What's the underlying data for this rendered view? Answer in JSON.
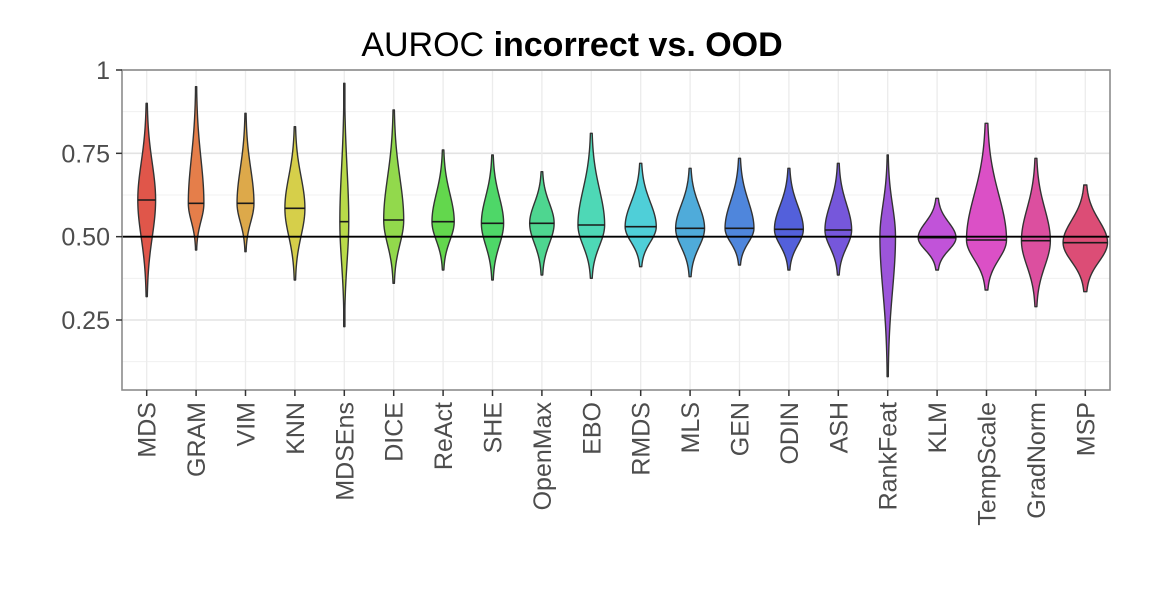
{
  "chart_data": {
    "type": "violin",
    "title": "AUROC ",
    "title_bold": "incorrect vs. OOD",
    "xlabel": "",
    "ylabel": "",
    "ylim": [
      0.04,
      1.0
    ],
    "yticks": [
      0.25,
      0.5,
      0.75,
      1.0
    ],
    "ytick_labels": [
      "0.25",
      "0.50",
      "0.75",
      "1"
    ],
    "reference_line": 0.5,
    "grid": true,
    "categories": [
      "MDS",
      "GRAM",
      "VIM",
      "KNN",
      "MDSEns",
      "DICE",
      "ReAct",
      "SHE",
      "OpenMax",
      "EBO",
      "RMDS",
      "MLS",
      "GEN",
      "ODIN",
      "ASH",
      "RankFeat",
      "KLM",
      "TempScale",
      "GradNorm",
      "MSP"
    ],
    "colors": [
      "#E0564A",
      "#E57E4A",
      "#DDA94A",
      "#D6CF4A",
      "#B9DA49",
      "#92D94C",
      "#63D74D",
      "#4ED768",
      "#4ED690",
      "#4ED8B6",
      "#4FCFD8",
      "#4FABDA",
      "#4F86DC",
      "#5360DB",
      "#7657DB",
      "#9C55DA",
      "#C153D9",
      "#DB50C6",
      "#DC4F9F",
      "#DC4D76"
    ],
    "medians": [
      0.61,
      0.6,
      0.6,
      0.585,
      0.545,
      0.55,
      0.545,
      0.54,
      0.54,
      0.535,
      0.53,
      0.525,
      0.525,
      0.522,
      0.52,
      0.5,
      0.497,
      0.49,
      0.488,
      0.482
    ],
    "mins": [
      0.32,
      0.46,
      0.455,
      0.37,
      0.23,
      0.36,
      0.4,
      0.37,
      0.385,
      0.375,
      0.41,
      0.38,
      0.415,
      0.4,
      0.385,
      0.08,
      0.4,
      0.34,
      0.29,
      0.335
    ],
    "maxs": [
      0.9,
      0.95,
      0.87,
      0.83,
      0.96,
      0.88,
      0.76,
      0.745,
      0.695,
      0.81,
      0.72,
      0.705,
      0.735,
      0.705,
      0.72,
      0.745,
      0.615,
      0.84,
      0.735,
      0.655
    ],
    "widths": [
      0.4,
      0.35,
      0.38,
      0.45,
      0.2,
      0.45,
      0.5,
      0.5,
      0.55,
      0.6,
      0.7,
      0.65,
      0.65,
      0.65,
      0.6,
      0.35,
      0.85,
      0.9,
      0.65,
      1.0
    ]
  }
}
